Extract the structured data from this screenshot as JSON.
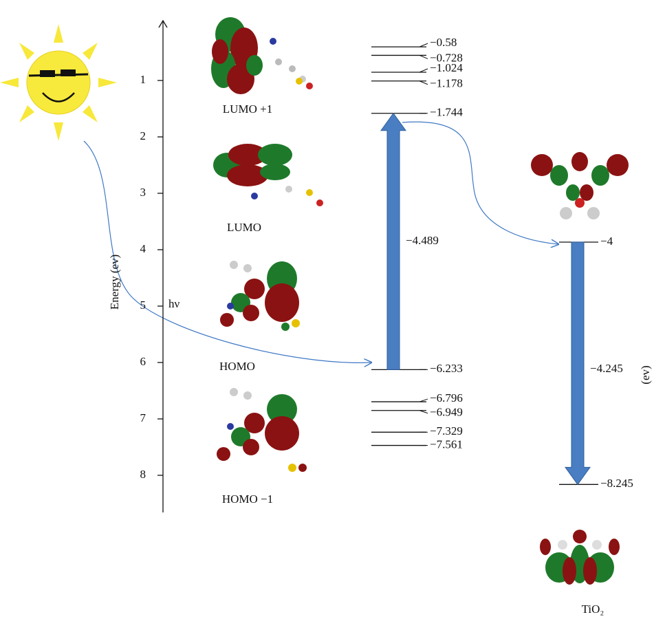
{
  "axis": {
    "title": "Energy (ev)",
    "ticks": [
      1,
      2,
      3,
      4,
      5,
      6,
      7,
      8
    ]
  },
  "dye_levels": [
    {
      "value": -0.58,
      "label": "−0.58"
    },
    {
      "value": -0.728,
      "label": "−0.728"
    },
    {
      "value": -1.024,
      "label": "−1.024"
    },
    {
      "value": -1.178,
      "label": "−1.178"
    },
    {
      "value": -1.744,
      "label": "−1.744"
    },
    {
      "value": -6.233,
      "label": "−6.233"
    },
    {
      "value": -6.796,
      "label": "−6.796"
    },
    {
      "value": -6.949,
      "label": "−6.949"
    },
    {
      "value": -7.329,
      "label": "−7.329"
    },
    {
      "value": -7.561,
      "label": "−7.561"
    }
  ],
  "tio2_levels": [
    {
      "value": -4,
      "label": "−4"
    },
    {
      "value": -8.245,
      "label": "−8.245"
    }
  ],
  "gaps": [
    {
      "label": "−4.489"
    },
    {
      "label": "−4.245",
      "unit": "(ev)"
    }
  ],
  "orbitals": [
    "LUMO +1",
    "LUMO",
    "HOMO",
    "HOMO −1"
  ],
  "photon": "hν",
  "tio2_label": "TiO₂"
}
